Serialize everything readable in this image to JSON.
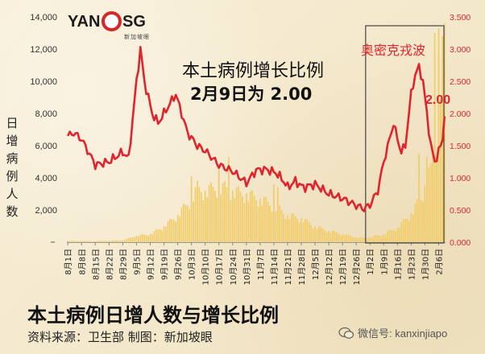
{
  "logo": {
    "left": "YAN",
    "right": "SG",
    "tagline": "新加坡眼"
  },
  "annotations": {
    "heading_line1": "本土病例增长比例",
    "heading_line2": "2月9日为 2.00",
    "omicron": "奥密克戎波",
    "ratio_label": "2.00"
  },
  "footer": {
    "title": "本土病例日增人数与增长比例",
    "source": "资料来源：卫生部    制图：新加坡眼",
    "wechat": "微信号: kanxinjiapo"
  },
  "chart_data": {
    "type": "bar",
    "title": "本土病例日增人数与增长比例",
    "ylabel": "日增病例人数",
    "y2label": "",
    "ylim": [
      0,
      14000
    ],
    "y2lim": [
      0,
      3.5
    ],
    "yticks": [
      "",
      "2,000",
      "4,000",
      "6,000",
      "8,000",
      "10,000",
      "12,000",
      "14,000"
    ],
    "y2ticks": [
      "0.000",
      "0.500",
      "1.000",
      "1.500",
      "2.000",
      "2.500",
      "3.000",
      "3.500"
    ],
    "xticks": [
      "8月1日",
      "8月8日",
      "8月15日",
      "8月22日",
      "8月29日",
      "9月5日",
      "9月12日",
      "9月19日",
      "9月26日",
      "10月3日",
      "10月10日",
      "10月17日",
      "10月24日",
      "10月31日",
      "11月7日",
      "11月14日",
      "11月21日",
      "11月28日",
      "12月5日",
      "12月12日",
      "12月19日",
      "12月26日",
      "1月2日",
      "1月9日",
      "1月16日",
      "1月23日",
      "1月30日",
      "2月6日"
    ],
    "n_days": 193,
    "daily_cases_anchors": [
      [
        0,
        80
      ],
      [
        14,
        70
      ],
      [
        28,
        120
      ],
      [
        35,
        400
      ],
      [
        42,
        500
      ],
      [
        49,
        1000
      ],
      [
        56,
        1700
      ],
      [
        63,
        2700
      ],
      [
        66,
        3400
      ],
      [
        70,
        3200
      ],
      [
        77,
        3500
      ],
      [
        84,
        3200
      ],
      [
        91,
        3000
      ],
      [
        98,
        2700
      ],
      [
        105,
        2300
      ],
      [
        112,
        1700
      ],
      [
        119,
        1500
      ],
      [
        126,
        1000
      ],
      [
        133,
        700
      ],
      [
        140,
        500
      ],
      [
        147,
        300
      ],
      [
        151,
        280
      ],
      [
        154,
        330
      ],
      [
        161,
        500
      ],
      [
        168,
        900
      ],
      [
        175,
        1800
      ],
      [
        180,
        2800
      ],
      [
        184,
        4300
      ],
      [
        186,
        5500
      ],
      [
        188,
        6500
      ],
      [
        190,
        7500
      ],
      [
        192,
        9000
      ]
    ],
    "daily_cases_spikes": [
      [
        63,
        4100
      ],
      [
        77,
        4800
      ],
      [
        82,
        5300
      ],
      [
        105,
        3600
      ],
      [
        107,
        3400
      ],
      [
        179,
        5500
      ],
      [
        183,
        5300
      ],
      [
        185,
        4900
      ],
      [
        187,
        13000
      ],
      [
        189,
        13300
      ],
      [
        190,
        8900
      ],
      [
        191,
        12800
      ],
      [
        192,
        13600
      ]
    ],
    "growth_ratio_anchors": [
      [
        0,
        1.65
      ],
      [
        3,
        1.7
      ],
      [
        7,
        1.6
      ],
      [
        14,
        1.2
      ],
      [
        21,
        1.25
      ],
      [
        28,
        1.4
      ],
      [
        31,
        1.3
      ],
      [
        35,
        2.5
      ],
      [
        37,
        3.0
      ],
      [
        39,
        2.5
      ],
      [
        43,
        2.0
      ],
      [
        46,
        1.85
      ],
      [
        52,
        2.15
      ],
      [
        55,
        2.3
      ],
      [
        58,
        2.0
      ],
      [
        61,
        1.7
      ],
      [
        66,
        1.5
      ],
      [
        70,
        1.42
      ],
      [
        77,
        1.2
      ],
      [
        84,
        1.1
      ],
      [
        91,
        0.92
      ],
      [
        96,
        1.12
      ],
      [
        101,
        1.13
      ],
      [
        106,
        1.08
      ],
      [
        110,
        0.95
      ],
      [
        112,
        0.85
      ],
      [
        116,
        0.95
      ],
      [
        120,
        0.85
      ],
      [
        126,
        0.9
      ],
      [
        133,
        0.75
      ],
      [
        140,
        0.68
      ],
      [
        147,
        0.57
      ],
      [
        151,
        0.52
      ],
      [
        154,
        0.58
      ],
      [
        158,
        0.8
      ],
      [
        161,
        1.25
      ],
      [
        164,
        1.6
      ],
      [
        166,
        1.85
      ],
      [
        168,
        1.6
      ],
      [
        170,
        1.4
      ],
      [
        172,
        1.5
      ],
      [
        175,
        2.3
      ],
      [
        177,
        2.6
      ],
      [
        179,
        2.72
      ],
      [
        181,
        2.5
      ],
      [
        183,
        2.0
      ],
      [
        185,
        1.5
      ],
      [
        187,
        1.25
      ],
      [
        189,
        1.4
      ],
      [
        191,
        1.6
      ],
      [
        192,
        2.0
      ]
    ],
    "series": [
      {
        "name": "日增人数",
        "axis": "left",
        "type": "bar"
      },
      {
        "name": "增长比例",
        "axis": "right",
        "type": "line"
      }
    ],
    "colors": {
      "bars": "#f2cc66",
      "line": "#e0242e",
      "omicron_box": "#444444",
      "right_axis": "#e0242e"
    },
    "highlight": {
      "label": "奥密克戎波",
      "from_day": 153,
      "to_day": 192
    },
    "grid": false,
    "legend": "none"
  }
}
